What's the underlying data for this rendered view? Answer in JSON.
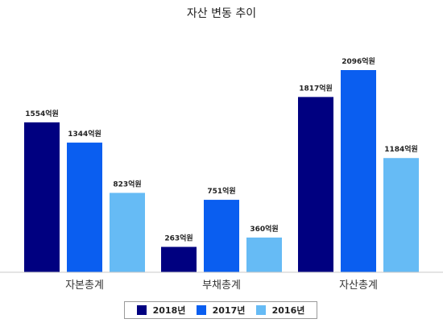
{
  "chart_data": {
    "type": "bar",
    "title": "자산 변동 추이",
    "categories": [
      "자본총계",
      "부채총계",
      "자산총계"
    ],
    "series": [
      {
        "name": "2018년",
        "color": "#000080",
        "values": [
          1554,
          263,
          1817
        ],
        "labels": [
          "1554억원",
          "263억원",
          "1817억원"
        ]
      },
      {
        "name": "2017년",
        "color": "#0a5ef0",
        "values": [
          1344,
          751,
          2096
        ],
        "labels": [
          "1344억원",
          "751억원",
          "2096억원"
        ]
      },
      {
        "name": "2016년",
        "color": "#66bbf5",
        "values": [
          823,
          360,
          1184
        ],
        "labels": [
          "823억원",
          "360억원",
          "1184억원"
        ]
      }
    ],
    "ylim": [
      0,
      2096
    ],
    "grid": false,
    "legend_position": "bottom"
  }
}
